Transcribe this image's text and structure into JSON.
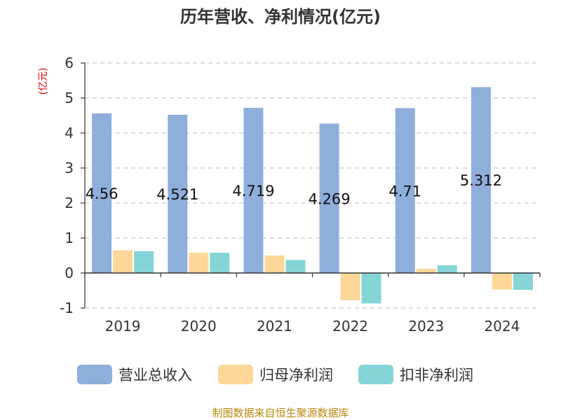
{
  "chart_data": {
    "type": "bar",
    "title": "历年营收、净利情况(亿元)",
    "ylabel": "(亿元)",
    "categories": [
      "2019",
      "2020",
      "2021",
      "2022",
      "2023",
      "2024"
    ],
    "ylim": [
      -1,
      6
    ],
    "yticks": [
      -1,
      0,
      1,
      2,
      3,
      4,
      5,
      6
    ],
    "grid": true,
    "legend_position": "bottom",
    "series": [
      {
        "name": "营业总收入",
        "color": "#8eaedb",
        "values": [
          4.56,
          4.521,
          4.719,
          4.269,
          4.71,
          5.312
        ],
        "data_labels": [
          "4.56",
          "4.521",
          "4.719",
          "4.269",
          "4.71",
          "5.312"
        ]
      },
      {
        "name": "归母净利润",
        "color": "#fcd797",
        "values": [
          0.65,
          0.58,
          0.5,
          -0.78,
          0.12,
          -0.47
        ]
      },
      {
        "name": "扣非净利润",
        "color": "#85d5d6",
        "values": [
          0.62,
          0.58,
          0.37,
          -0.87,
          0.22,
          -0.48
        ]
      }
    ]
  },
  "colors": {
    "unit_label": "#dd0000",
    "source": "#b8860b",
    "grid": "#c8c8c8",
    "axis": "#333333"
  },
  "source": "制图数据来自恒生聚源数据库"
}
